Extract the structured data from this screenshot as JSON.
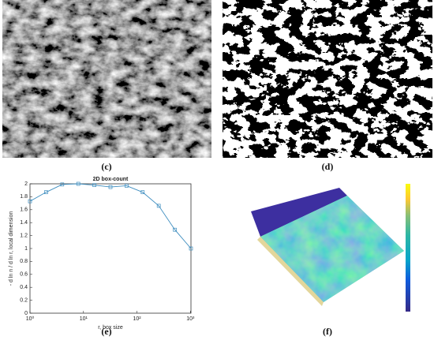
{
  "panels": [
    "(c)",
    "(d)",
    "(e)",
    "(f)"
  ],
  "chart_data": {
    "type": "line",
    "title": "2D box-count",
    "x_label": "r, box size",
    "y_label": "- d ln n / d ln r, local dimension",
    "x": [
      1,
      2,
      4,
      8,
      16,
      32,
      64,
      128,
      256,
      512,
      1024
    ],
    "series": [
      {
        "name": "local dimension",
        "color": "#3d8dbf",
        "values": [
          1.73,
          1.87,
          1.99,
          2.0,
          1.98,
          1.95,
          1.97,
          1.87,
          1.66,
          1.29,
          1.0
        ]
      }
    ],
    "xscale": "log",
    "xlim": [
      1,
      1024
    ],
    "xticks": [
      {
        "value": 1,
        "label": "10⁰"
      },
      {
        "value": 10,
        "label": "10¹"
      },
      {
        "value": 100,
        "label": "10²"
      },
      {
        "value": 1000,
        "label": "10³"
      }
    ],
    "ylim": [
      0,
      2
    ],
    "yticks": [
      0,
      0.2,
      0.4,
      0.6,
      0.8,
      1,
      1.2,
      1.4,
      1.6,
      1.8,
      2
    ]
  }
}
